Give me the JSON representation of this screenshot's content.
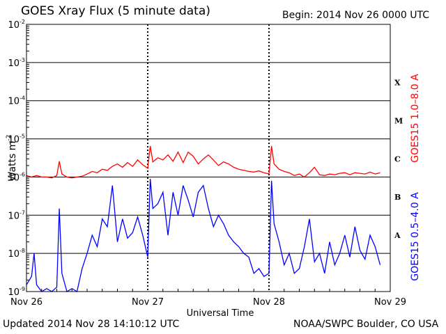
{
  "header": {
    "title": "GOES Xray Flux (5 minute data)",
    "begin": "Begin:  2014 Nov 26 0000 UTC"
  },
  "footer": {
    "updated": "Updated 2014 Nov 28 14:10:12 UTC",
    "credit": "NOAA/SWPC Boulder, CO USA"
  },
  "chart_data": {
    "type": "line",
    "title": "GOES Xray Flux (5 minute data)",
    "xlabel": "Universal Time",
    "ylabel": "Watts m",
    "ylabel_superscript": "-2",
    "y_scale": "log",
    "ylim": [
      1e-09,
      0.01
    ],
    "xlim": [
      "2014-11-26 00:00",
      "2014-11-29 00:00"
    ],
    "x_unit": "hours since 2014-11-26 00:00 UTC",
    "y_ticks": [
      {
        "base": "10",
        "exp": "-9",
        "value": 1e-09
      },
      {
        "base": "10",
        "exp": "-8",
        "value": 1e-08
      },
      {
        "base": "10",
        "exp": "-7",
        "value": 1e-07
      },
      {
        "base": "10",
        "exp": "-6",
        "value": 1e-06
      },
      {
        "base": "10",
        "exp": "-5",
        "value": 1e-05
      },
      {
        "base": "10",
        "exp": "-4",
        "value": 0.0001
      },
      {
        "base": "10",
        "exp": "-3",
        "value": 0.001
      },
      {
        "base": "10",
        "exp": "-2",
        "value": 0.01
      }
    ],
    "x_ticks": [
      {
        "label": "Nov 26",
        "hour": 0
      },
      {
        "label": "Nov 27",
        "hour": 24
      },
      {
        "label": "Nov 28",
        "hour": 48
      },
      {
        "label": "Nov 29",
        "hour": 72
      }
    ],
    "flare_classes": [
      {
        "label": "X",
        "value": 0.0003
      },
      {
        "label": "M",
        "value": 3e-05
      },
      {
        "label": "C",
        "value": 3e-06
      },
      {
        "label": "B",
        "value": 3e-07
      },
      {
        "label": "A",
        "value": 3e-08
      }
    ],
    "grid": true,
    "series": [
      {
        "name": "GOES15 1.0–8.0 A",
        "color": "#ff0000",
        "hours": [
          0,
          1,
          2,
          3,
          4,
          5,
          6,
          6.5,
          7,
          8,
          9,
          10,
          11,
          12,
          13,
          14,
          15,
          16,
          17,
          18,
          19,
          20,
          21,
          22,
          23,
          24,
          24.5,
          25,
          26,
          27,
          28,
          29,
          30,
          31,
          32,
          33,
          34,
          35,
          36,
          37,
          38,
          39,
          40,
          41,
          42,
          43,
          44,
          45,
          46,
          47,
          48,
          48.5,
          49,
          50,
          51,
          52,
          53,
          54,
          55,
          56,
          57,
          58,
          59,
          60,
          61,
          62,
          63,
          64,
          65,
          66,
          67,
          68,
          69,
          70
        ],
        "values": [
          1.1e-06,
          1e-06,
          1.1e-06,
          1e-06,
          1e-06,
          9.5e-07,
          1.1e-06,
          2.6e-06,
          1.2e-06,
          1e-06,
          9.5e-07,
          1e-06,
          1.05e-06,
          1.2e-06,
          1.4e-06,
          1.3e-06,
          1.6e-06,
          1.5e-06,
          1.9e-06,
          2.2e-06,
          1.8e-06,
          2.4e-06,
          1.9e-06,
          2.8e-06,
          2.1e-06,
          1.7e-06,
          6.5e-06,
          2.5e-06,
          3.2e-06,
          2.8e-06,
          3.8e-06,
          2.6e-06,
          4.5e-06,
          2.4e-06,
          4.5e-06,
          3.5e-06,
          2.2e-06,
          3e-06,
          3.8e-06,
          2.8e-06,
          2e-06,
          2.5e-06,
          2.2e-06,
          1.8e-06,
          1.6e-06,
          1.5e-06,
          1.4e-06,
          1.35e-06,
          1.45e-06,
          1.3e-06,
          1.2e-06,
          6.5e-06,
          2.2e-06,
          1.6e-06,
          1.4e-06,
          1.3e-06,
          1.1e-06,
          1.2e-06,
          1e-06,
          1.3e-06,
          1.8e-06,
          1.15e-06,
          1.1e-06,
          1.2e-06,
          1.15e-06,
          1.25e-06,
          1.3e-06,
          1.15e-06,
          1.3e-06,
          1.25e-06,
          1.2e-06,
          1.35e-06,
          1.2e-06,
          1.3e-06
        ]
      },
      {
        "name": "GOES15 0.5–4.0 A",
        "color": "#0000ff",
        "hours": [
          0,
          1,
          1.5,
          2,
          3,
          4,
          5,
          6,
          6.5,
          7,
          8,
          9,
          10,
          11,
          12,
          13,
          14,
          15,
          16,
          17,
          18,
          19,
          20,
          21,
          22,
          23,
          24,
          24.5,
          25,
          26,
          27,
          28,
          29,
          30,
          31,
          32,
          33,
          34,
          35,
          36,
          37,
          38,
          39,
          40,
          41,
          42,
          43,
          44,
          45,
          46,
          47,
          48,
          48.5,
          49,
          50,
          51,
          52,
          53,
          54,
          55,
          56,
          57,
          58,
          59,
          60,
          61,
          62,
          63,
          64,
          65,
          66,
          67,
          68,
          69,
          70
        ],
        "values": [
          1.5e-09,
          2.5e-09,
          1e-08,
          1.5e-09,
          1e-09,
          1.2e-09,
          1e-09,
          1.3e-09,
          1.5e-07,
          3e-09,
          1e-09,
          1.2e-09,
          1e-09,
          4e-09,
          1e-08,
          3e-08,
          1.5e-08,
          8e-08,
          5e-08,
          6e-07,
          2e-08,
          8e-08,
          2.5e-08,
          3.5e-08,
          9e-08,
          3e-08,
          8e-09,
          9e-07,
          1.5e-07,
          2e-07,
          4e-07,
          3e-08,
          4e-07,
          1e-07,
          6e-07,
          2.5e-07,
          9e-08,
          4e-07,
          6e-07,
          1.5e-07,
          5e-08,
          1e-07,
          6e-08,
          3e-08,
          2e-08,
          1.5e-08,
          1e-08,
          8e-09,
          3e-09,
          4e-09,
          2.5e-09,
          3e-09,
          8e-07,
          6e-08,
          2e-08,
          5e-09,
          1e-08,
          3e-09,
          4e-09,
          1.5e-08,
          8e-08,
          6e-09,
          1e-08,
          3e-09,
          2e-08,
          5e-09,
          1e-08,
          3e-08,
          8e-09,
          5e-08,
          1.2e-08,
          7e-09,
          3e-08,
          1.5e-08,
          5e-09
        ]
      }
    ]
  }
}
